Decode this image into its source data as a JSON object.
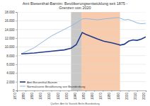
{
  "chart_data": {
    "type": "line",
    "title": "Amt Biesenthal-Barnim: Bevölkerungsentwicklung seit 1875 -",
    "subtitle": "Grenzen von 2020",
    "source": "Quellen: Amt für Statistik Berlin-Brandenburg",
    "x": [
      1875,
      1890,
      1910,
      1925,
      1933,
      1939,
      1946,
      1950,
      1964,
      1971,
      1981,
      1985,
      1989,
      1990,
      1995,
      2000,
      2005,
      2010,
      2015,
      2020
    ],
    "series": [
      {
        "name": "Amt Biesenthal-Barnim",
        "color": "#1f3c88",
        "values": [
          8400,
          8600,
          9000,
          9300,
          9700,
          10500,
          13300,
          12900,
          11800,
          11300,
          10900,
          10700,
          10500,
          10400,
          10600,
          11300,
          11600,
          11500,
          11800,
          12300
        ]
      },
      {
        "name": "Normalisierte Bevölkerung von Brandenburg",
        "color": "#8fb8de",
        "values": [
          8400,
          9800,
          12500,
          14000,
          14800,
          15500,
          16400,
          16500,
          16200,
          16400,
          16600,
          16700,
          16700,
          16600,
          16200,
          16300,
          15900,
          15500,
          15300,
          15400
        ]
      }
    ],
    "shaded_periods": [
      {
        "start": 1933,
        "end": 1945,
        "color": "#c8c8c8"
      },
      {
        "start": 1945,
        "end": 1990,
        "color": "#f8cbad"
      }
    ],
    "xlim": [
      1870,
      2020
    ],
    "xticks": [
      1870,
      1880,
      1890,
      1900,
      1910,
      1920,
      1930,
      1940,
      1950,
      1960,
      1970,
      1980,
      1990,
      2000,
      2010,
      2020
    ],
    "ylim": [
      0,
      18000
    ],
    "yticks": [
      0,
      {
        "value": 2000,
        "label": "2.000"
      },
      {
        "value": 4000,
        "label": "4.000"
      },
      {
        "value": 6000,
        "label": "6.000"
      },
      {
        "value": 8000,
        "label": "8.000"
      },
      {
        "value": 10000,
        "label": "10.000"
      },
      {
        "value": 12000,
        "label": "12.000"
      },
      {
        "value": 14000,
        "label": "14.000"
      },
      {
        "value": 16000,
        "label": "16.000"
      },
      {
        "value": 18000,
        "label": "18.000"
      }
    ],
    "grid": true,
    "legend": "lower left"
  }
}
